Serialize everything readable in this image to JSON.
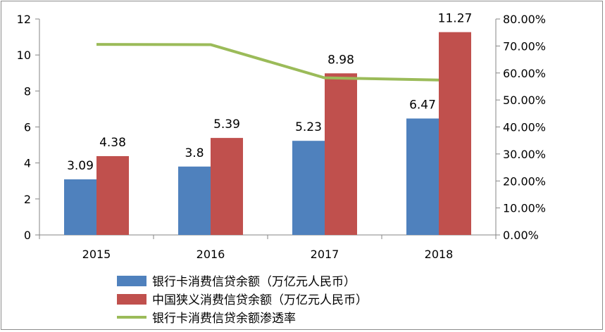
{
  "chart_data": {
    "type": "bar",
    "categories": [
      "2015",
      "2016",
      "2017",
      "2018"
    ],
    "series": [
      {
        "name": "银行卡消费信贷余额（万亿元人民币）",
        "type": "bar",
        "axis": "left",
        "color": "#4f81bd",
        "values": [
          3.09,
          3.8,
          5.23,
          6.47
        ],
        "labels": [
          "3.09",
          "3.8",
          "5.23",
          "6.47"
        ]
      },
      {
        "name": "中国狭义消费信贷余额（万亿元人民币）",
        "type": "bar",
        "axis": "left",
        "color": "#c0504d",
        "values": [
          4.38,
          5.39,
          8.98,
          11.27
        ],
        "labels": [
          "4.38",
          "5.39",
          "8.98",
          "11.27"
        ]
      },
      {
        "name": "银行卡消费信贷余额渗透率",
        "type": "line",
        "axis": "right",
        "color": "#9bbb59",
        "values": [
          0.706,
          0.705,
          0.582,
          0.574
        ]
      }
    ],
    "left_axis": {
      "ylim": [
        0,
        12
      ],
      "ticks": [
        "0",
        "2",
        "4",
        "6",
        "8",
        "10",
        "12"
      ]
    },
    "right_axis": {
      "ylim": [
        0,
        0.8
      ],
      "ticks": [
        "0.00%",
        "10.00%",
        "20.00%",
        "30.00%",
        "40.00%",
        "50.00%",
        "60.00%",
        "70.00%",
        "80.00%"
      ]
    },
    "grid": false,
    "legend_position": "bottom"
  }
}
